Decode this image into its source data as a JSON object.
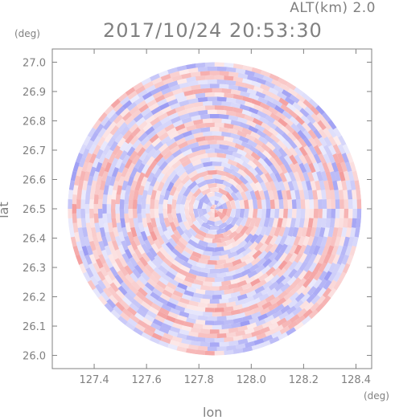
{
  "header": {
    "altitude_label": "ALT(km) 2.0",
    "timestamp": "2017/10/24 20:53:30"
  },
  "chart_data": {
    "type": "heatmap",
    "title": "2017/10/24 20:53:30",
    "subtitle": "ALT(km) 2.0",
    "xlabel": "lon",
    "ylabel": "lat",
    "x_unit": "(deg)",
    "y_unit": "(deg)",
    "xlim": [
      127.24,
      128.46
    ],
    "ylim": [
      25.955,
      27.045
    ],
    "x_ticks": [
      127.4,
      127.6,
      127.8,
      128.0,
      128.2,
      128.4
    ],
    "x_tick_labels": [
      "127.4",
      "127.6",
      "127.8",
      "128.0",
      "128.2",
      "128.4"
    ],
    "y_ticks": [
      26.0,
      26.1,
      26.2,
      26.3,
      26.4,
      26.5,
      26.6,
      26.7,
      26.8,
      26.9,
      27.0
    ],
    "y_tick_labels": [
      "26.0",
      "26.1",
      "26.2",
      "26.3",
      "26.4",
      "26.5",
      "26.6",
      "26.7",
      "26.8",
      "26.9",
      "27.0"
    ],
    "radar_center": {
      "lon": 127.86,
      "lat": 26.5
    },
    "radar_radius_deg_lat": 0.5,
    "grid": false,
    "colors": {
      "positive": "#f08080",
      "negative": "#8080f0",
      "axes": "#808080"
    }
  }
}
